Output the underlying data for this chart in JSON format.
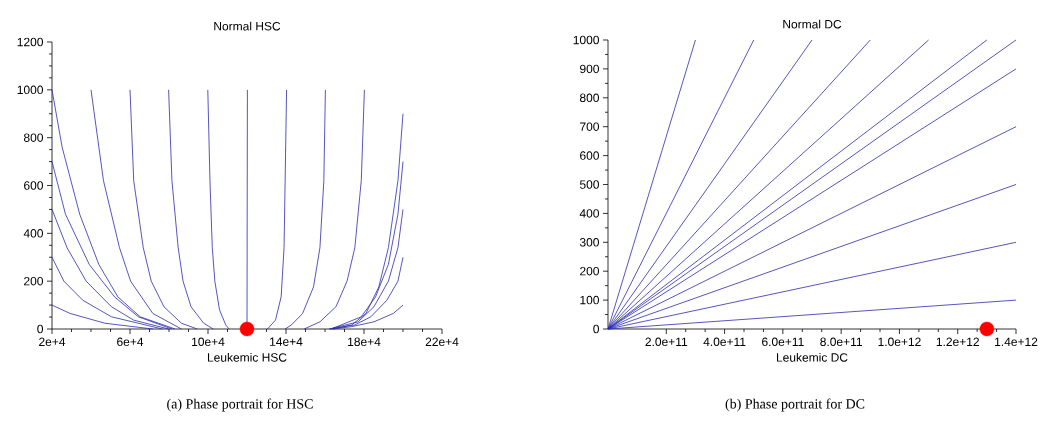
{
  "chart_data": [
    {
      "type": "line",
      "title": "Normal HSC",
      "xlabel": "Leukemic HSC",
      "xlim": [
        20000,
        220000
      ],
      "ylim": [
        0,
        1200
      ],
      "xticks": [
        {
          "value": 20000,
          "label": "2e+4"
        },
        {
          "value": 60000,
          "label": "6e+4"
        },
        {
          "value": 100000,
          "label": "10e+4"
        },
        {
          "value": 140000,
          "label": "14e+4"
        },
        {
          "value": 180000,
          "label": "18e+4"
        },
        {
          "value": 220000,
          "label": "22e+4"
        }
      ],
      "yticks": [
        0,
        200,
        400,
        600,
        800,
        1000,
        1200
      ],
      "annotations": [
        "(a)  Phase portrait for HSC"
      ],
      "series": [
        {
          "type": "scatter",
          "color": "#ff0000",
          "x": [
            120000
          ],
          "values": [
            0
          ]
        },
        {
          "color": "#2b2bb0",
          "x": [
            40000,
            46400,
            54600,
            60300,
            71700,
            86400
          ],
          "values": [
            1000,
            620,
            340,
            200,
            65,
            0
          ]
        },
        {
          "color": "#2b2bb0",
          "x": [
            60000,
            61900,
            66800,
            70900,
            77400,
            86400,
            94500
          ],
          "values": [
            1000,
            620,
            340,
            200,
            93,
            24,
            0
          ]
        },
        {
          "color": "#2b2bb0",
          "x": [
            79800,
            81500,
            84700,
            87200,
            91300,
            97800,
            102700
          ],
          "values": [
            1000,
            620,
            340,
            200,
            93,
            24,
            0
          ]
        },
        {
          "color": "#2b2bb0",
          "x": [
            99900,
            101000,
            102200,
            103500,
            105900,
            109100,
            110800
          ],
          "values": [
            1000,
            620,
            340,
            200,
            80,
            17,
            0
          ]
        },
        {
          "color": "#2b2bb0",
          "x": [
            120200,
            120000
          ],
          "values": [
            1000,
            0
          ]
        },
        {
          "color": "#2b2bb0",
          "x": [
            140300,
            139000,
            137500,
            134600,
            130500
          ],
          "values": [
            1000,
            340,
            134,
            37,
            0
          ]
        },
        {
          "color": "#2b2bb0",
          "x": [
            160200,
            159400,
            157400,
            154100,
            148500,
            142800,
            139500
          ],
          "values": [
            1000,
            620,
            340,
            176,
            65,
            17,
            0
          ]
        },
        {
          "color": "#2b2bb0",
          "x": [
            180200,
            178600,
            175300,
            171300,
            165600,
            157400,
            149300
          ],
          "values": [
            1000,
            620,
            340,
            200,
            93,
            30,
            0
          ]
        },
        {
          "color": "#2b2bb0",
          "x": [
            20000,
            25200,
            34200,
            44000,
            53800,
            65200,
            83100
          ],
          "values": [
            1000,
            760,
            480,
            270,
            134,
            51,
            0
          ]
        },
        {
          "color": "#2b2bb0",
          "x": [
            20000,
            26900,
            39100,
            52100,
            64300,
            81500
          ],
          "values": [
            700,
            480,
            270,
            134,
            51,
            0
          ]
        },
        {
          "color": "#2b2bb0",
          "x": [
            20000,
            27700,
            37500,
            50500,
            61900,
            79800
          ],
          "values": [
            500,
            340,
            200,
            93,
            37,
            0
          ]
        },
        {
          "color": "#2b2bb0",
          "x": [
            20000,
            26100,
            35800,
            50500,
            76600
          ],
          "values": [
            300,
            200,
            120,
            51,
            0
          ]
        },
        {
          "color": "#2b2bb0",
          "x": [
            20000,
            29300,
            47200,
            71700
          ],
          "values": [
            100,
            65,
            24,
            0
          ]
        },
        {
          "color": "#2b2bb0",
          "x": [
            200000,
            197400,
            192500,
            187600,
            181000,
            173700,
            163900
          ],
          "values": [
            900,
            620,
            340,
            176,
            65,
            17,
            0
          ]
        },
        {
          "color": "#2b2bb0",
          "x": [
            200000,
            197400,
            192500,
            185900,
            178600,
            163100
          ],
          "values": [
            700,
            480,
            270,
            134,
            51,
            0
          ]
        },
        {
          "color": "#2b2bb0",
          "x": [
            200000,
            197400,
            192500,
            185100,
            177000,
            162200
          ],
          "values": [
            500,
            340,
            200,
            93,
            30,
            0
          ]
        },
        {
          "color": "#2b2bb0",
          "x": [
            200000,
            197400,
            191700,
            183500,
            175300,
            162200
          ],
          "values": [
            300,
            200,
            120,
            51,
            17,
            0
          ]
        },
        {
          "color": "#2b2bb0",
          "x": [
            200000,
            195000,
            185100,
            173700,
            163900
          ],
          "values": [
            100,
            65,
            30,
            10,
            0
          ]
        }
      ]
    },
    {
      "type": "line",
      "title": "Normal DC",
      "xlabel": "Leukemic DC",
      "xlim": [
        0,
        1400000000000
      ],
      "ylim": [
        0,
        1000
      ],
      "xticks": [
        {
          "value": 200000000000,
          "label": "2.0e+11"
        },
        {
          "value": 400000000000,
          "label": "4.0e+11"
        },
        {
          "value": 600000000000,
          "label": "6.0e+11"
        },
        {
          "value": 800000000000,
          "label": "8.0e+11"
        },
        {
          "value": 1000000000000,
          "label": "1.0e+12"
        },
        {
          "value": 1200000000000,
          "label": "1.2e+12"
        },
        {
          "value": 1400000000000,
          "label": "1.4e+12"
        }
      ],
      "yticks": [
        0,
        100,
        200,
        300,
        400,
        500,
        600,
        700,
        800,
        900,
        1000
      ],
      "annotations": [
        "(b)  Phase portrait for DC"
      ],
      "series": [
        {
          "color": "#2b2bb0",
          "x": [
            0,
            300000000000
          ],
          "values": [
            0,
            1000
          ]
        },
        {
          "color": "#2b2bb0",
          "x": [
            0,
            500000000000
          ],
          "values": [
            0,
            1000
          ]
        },
        {
          "color": "#2b2bb0",
          "x": [
            0,
            700000000000
          ],
          "values": [
            0,
            1000
          ]
        },
        {
          "color": "#2b2bb0",
          "x": [
            0,
            900000000000
          ],
          "values": [
            0,
            1000
          ]
        },
        {
          "color": "#2b2bb0",
          "x": [
            0,
            1100000000000
          ],
          "values": [
            0,
            1000
          ]
        },
        {
          "color": "#2b2bb0",
          "x": [
            0,
            1300000000000
          ],
          "values": [
            0,
            1000
          ]
        },
        {
          "color": "#2b2bb0",
          "x": [
            0,
            1400000000000
          ],
          "values": [
            0,
            1000
          ]
        },
        {
          "color": "#2b2bb0",
          "x": [
            0,
            1400000000000
          ],
          "values": [
            0,
            900
          ]
        },
        {
          "color": "#2b2bb0",
          "x": [
            0,
            1400000000000
          ],
          "values": [
            0,
            700
          ]
        },
        {
          "color": "#2b2bb0",
          "x": [
            0,
            1400000000000
          ],
          "values": [
            0,
            500
          ]
        },
        {
          "color": "#2b2bb0",
          "x": [
            0,
            1400000000000
          ],
          "values": [
            0,
            300
          ]
        },
        {
          "color": "#2b2bb0",
          "x": [
            0,
            1400000000000
          ],
          "values": [
            0,
            100
          ]
        },
        {
          "type": "scatter",
          "color": "#ff0000",
          "x": [
            1300000000000
          ],
          "values": [
            0
          ]
        }
      ]
    }
  ]
}
